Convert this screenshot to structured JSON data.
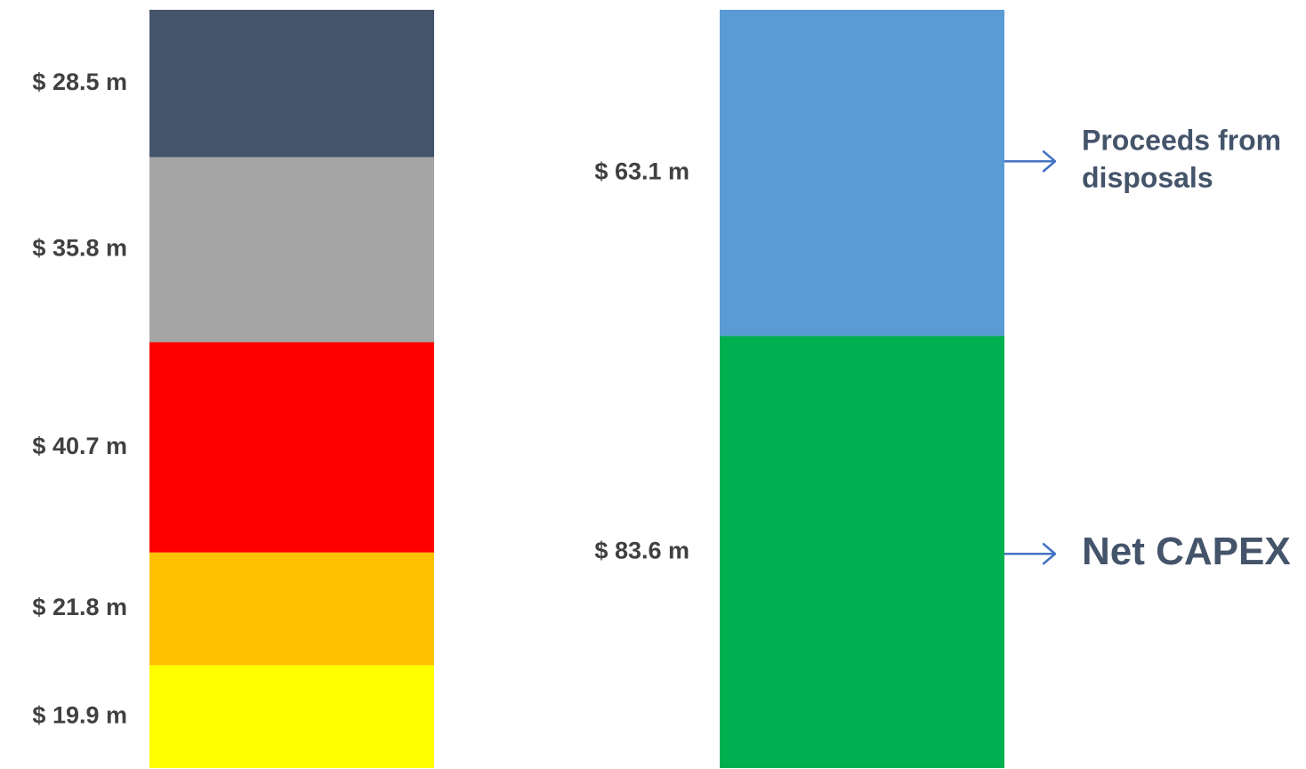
{
  "chart_data": {
    "type": "bar",
    "stacked": true,
    "grid": false,
    "legend": "none",
    "columns": [
      {
        "segments_top_to_bottom": [
          {
            "value": 28.5,
            "label": "$ 28.5 m",
            "color": "#44546a"
          },
          {
            "value": 35.8,
            "label": "$ 35.8 m",
            "color": "#a6a6a6"
          },
          {
            "value": 40.7,
            "label": "$ 40.7 m",
            "color": "#ff0000"
          },
          {
            "value": 21.8,
            "label": "$ 21.8 m",
            "color": "#ffc000"
          },
          {
            "value": 19.9,
            "label": "$ 19.9 m",
            "color": "#ffff00"
          }
        ]
      },
      {
        "segments_top_to_bottom": [
          {
            "value": 63.1,
            "label": "$ 63.1 m",
            "color": "#5b9bd5"
          },
          {
            "value": 83.6,
            "label": "$ 83.6 m",
            "color": "#00b050"
          }
        ]
      }
    ],
    "annotations": [
      {
        "lines": [
          "Proceeds from",
          "disposals"
        ],
        "color": "#44546a",
        "arrow_color": "#4472c4",
        "segment": 0,
        "size": "small"
      },
      {
        "lines": [
          "Net CAPEX"
        ],
        "color": "#44546a",
        "arrow_color": "#4472c4",
        "segment": 1,
        "size": "large"
      }
    ]
  }
}
